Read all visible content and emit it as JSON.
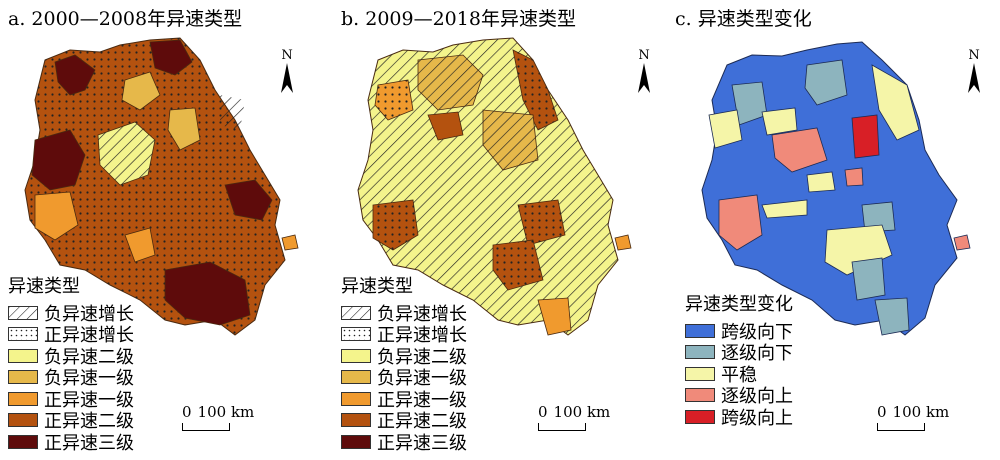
{
  "panels": [
    {
      "title": "a. 2000—2008年异速类型",
      "north_label": "N",
      "legend_title": "异速类型",
      "legend": [
        {
          "label": "负异速增长",
          "fill": "#ffffff",
          "pattern": "hatch"
        },
        {
          "label": "正异速增长",
          "fill": "#ffffff",
          "pattern": "dots"
        },
        {
          "label": "负异速二级",
          "fill": "#f4f48c",
          "pattern": "none"
        },
        {
          "label": "负异速一级",
          "fill": "#e6b84a",
          "pattern": "none"
        },
        {
          "label": "正异速一级",
          "fill": "#f09a2e",
          "pattern": "none"
        },
        {
          "label": "正异速二级",
          "fill": "#b4520f",
          "pattern": "none"
        },
        {
          "label": "正异速三级",
          "fill": "#5e0b0b",
          "pattern": "none"
        }
      ],
      "scale": {
        "zero": "0",
        "distance": "100 km"
      }
    },
    {
      "title": "b. 2009—2018年异速类型",
      "north_label": "N",
      "legend_title": "异速类型",
      "legend": [
        {
          "label": "负异速增长",
          "fill": "#ffffff",
          "pattern": "hatch"
        },
        {
          "label": "正异速增长",
          "fill": "#ffffff",
          "pattern": "dots"
        },
        {
          "label": "负异速二级",
          "fill": "#f4f48c",
          "pattern": "none"
        },
        {
          "label": "负异速一级",
          "fill": "#e6b84a",
          "pattern": "none"
        },
        {
          "label": "正异速一级",
          "fill": "#f09a2e",
          "pattern": "none"
        },
        {
          "label": "正异速二级",
          "fill": "#b4520f",
          "pattern": "none"
        },
        {
          "label": "正异速三级",
          "fill": "#5e0b0b",
          "pattern": "none"
        }
      ],
      "scale": {
        "zero": "0",
        "distance": "100 km"
      }
    },
    {
      "title": "c. 异速类型变化",
      "north_label": "N",
      "legend_title": "异速类型变化",
      "legend": [
        {
          "label": "跨级向下",
          "fill": "#3f6fd8",
          "pattern": "none"
        },
        {
          "label": "逐级向下",
          "fill": "#8db4be",
          "pattern": "none"
        },
        {
          "label": "平稳",
          "fill": "#f5f5a8",
          "pattern": "none"
        },
        {
          "label": "逐级向上",
          "fill": "#f08a7a",
          "pattern": "none"
        },
        {
          "label": "跨级向上",
          "fill": "#d81f26",
          "pattern": "none"
        }
      ],
      "scale": {
        "zero": "0",
        "distance": "100 km"
      }
    }
  ]
}
